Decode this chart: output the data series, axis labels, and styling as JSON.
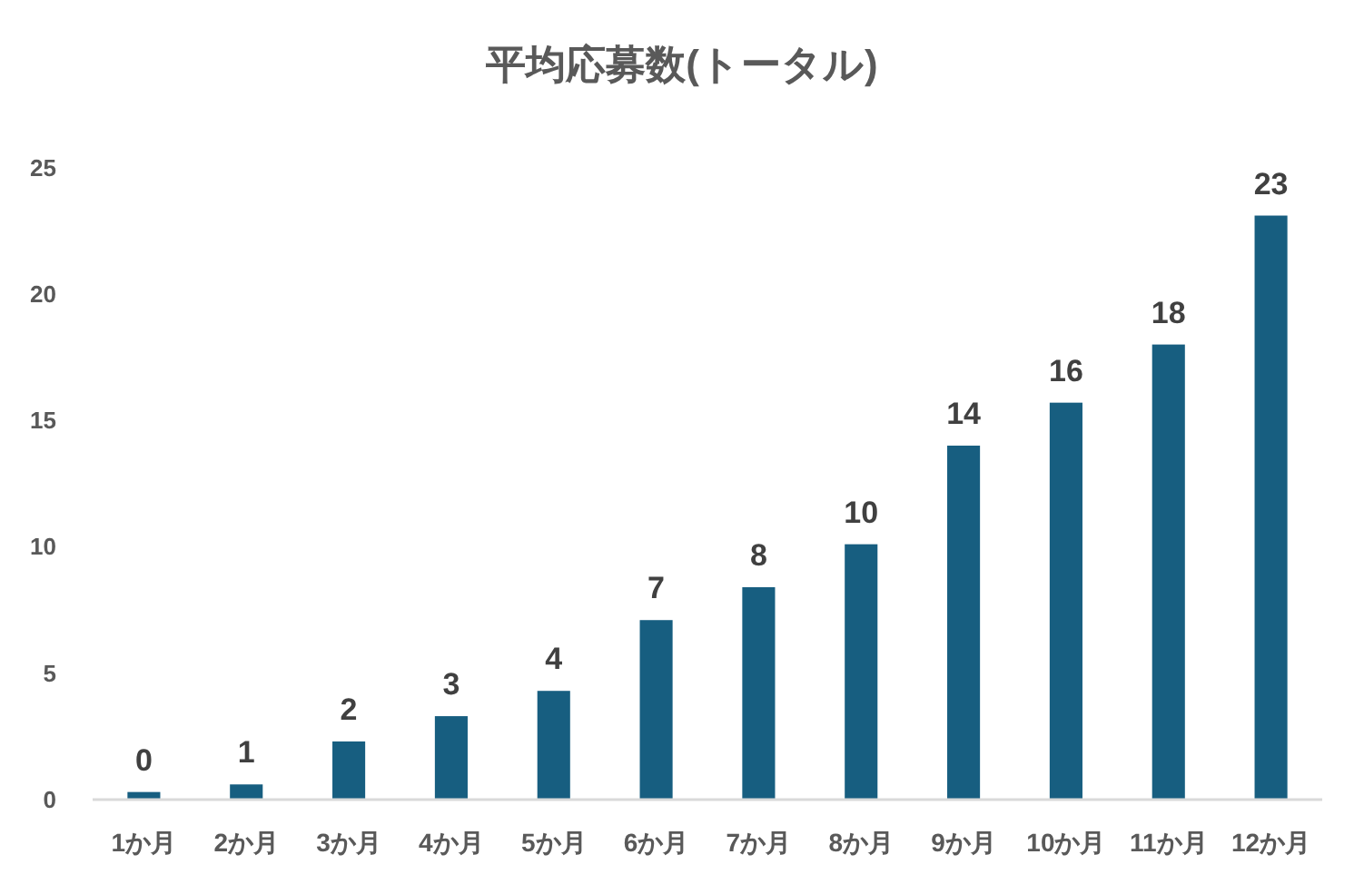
{
  "chart_data": {
    "type": "bar",
    "title": "平均応募数(トータル)",
    "categories": [
      "1か月",
      "2か月",
      "3か月",
      "4か月",
      "5か月",
      "6か月",
      "7か月",
      "8か月",
      "9か月",
      "10か月",
      "11か月",
      "12か月"
    ],
    "values": [
      0.3,
      0.6,
      2.3,
      3.3,
      4.3,
      7.1,
      8.4,
      10.1,
      14.0,
      15.7,
      18.0,
      23.1
    ],
    "value_labels": [
      "0",
      "1",
      "2",
      "3",
      "4",
      "7",
      "8",
      "10",
      "14",
      "16",
      "18",
      "23"
    ],
    "color": "#175e80",
    "ylim": [
      0,
      25
    ],
    "yticks": [
      0,
      5,
      10,
      15,
      20,
      25
    ]
  }
}
